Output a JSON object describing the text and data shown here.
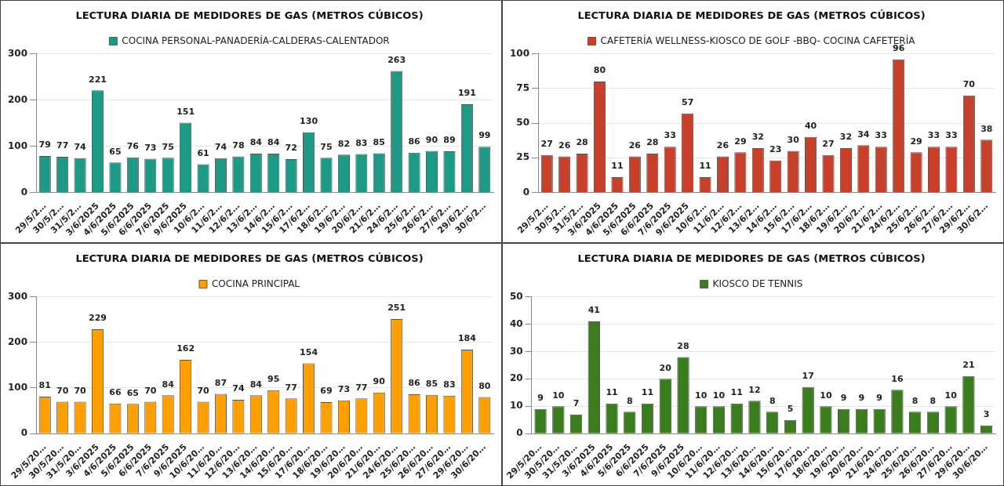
{
  "chart_data": [
    {
      "type": "bar",
      "title": "LECTURA DIARIA DE MEDIDORES DE GAS (METROS CÚBICOS)",
      "categories": [
        "29/5/2…",
        "30/5/2…",
        "31/5/2…",
        "3/6/2025",
        "4/6/2025",
        "5/6/2025",
        "6/6/2025",
        "7/6/2025",
        "9/6/2025",
        "10/6/2…",
        "11/6/2…",
        "12/6/2…",
        "13/6/2…",
        "14/6/2…",
        "15/6/2…",
        "17/6/2…",
        "18/6/2…",
        "19/6/2…",
        "20/6/2…",
        "21/6/2…",
        "24/6/2…",
        "25/6/2…",
        "26/6/2…",
        "27/6/2…",
        "29/6/2…",
        "30/6/2…"
      ],
      "series": [
        {
          "name": "COCINA PERSONAL-PANADERÍA-CALDERAS-CALENTADOR",
          "color": "#1c9a86",
          "values": [
            79,
            77,
            74,
            221,
            65,
            76,
            73,
            75,
            151,
            61,
            74,
            78,
            84,
            84,
            72,
            130,
            75,
            82,
            83,
            85,
            263,
            86,
            90,
            89,
            191,
            99
          ]
        }
      ],
      "ylim": [
        0,
        300
      ],
      "yticks": [
        0,
        100,
        200,
        300
      ],
      "grid": "y",
      "legend": "top",
      "data_labels": true
    },
    {
      "type": "bar",
      "title": "LECTURA DIARIA DE MEDIDORES DE GAS (METROS CÚBICOS)",
      "categories": [
        "29/5/2…",
        "30/5/2…",
        "31/5/2…",
        "3/6/2025",
        "4/6/2025",
        "5/6/2025",
        "6/6/2025",
        "7/6/2025",
        "9/6/2025",
        "10/6/2…",
        "11/6/2…",
        "12/6/2…",
        "13/6/2…",
        "14/6/2…",
        "15/6/2…",
        "17/6/2…",
        "18/6/2…",
        "19/6/2…",
        "20/6/2…",
        "21/6/2…",
        "24/6/2…",
        "25/6/2…",
        "26/6/2…",
        "27/6/2…",
        "29/6/2…",
        "30/6/2…"
      ],
      "series": [
        {
          "name": "CAFETERÍA WELLNESS-KIOSCO DE GOLF -BBQ- COCINA CAFETERÍA",
          "color": "#c9402a",
          "values": [
            27,
            26,
            28,
            80,
            11,
            26,
            28,
            33,
            57,
            11,
            26,
            29,
            32,
            23,
            30,
            40,
            27,
            32,
            34,
            33,
            96,
            29,
            33,
            33,
            70,
            38
          ]
        }
      ],
      "ylim": [
        0,
        100
      ],
      "yticks": [
        0,
        25,
        50,
        75,
        100
      ],
      "grid": "y",
      "legend": "top",
      "data_labels": true
    },
    {
      "type": "bar",
      "title": "LECTURA DIARIA DE MEDIDORES DE GAS (METROS CÚBICOS)",
      "categories": [
        "29/5/20…",
        "30/5/20…",
        "31/5/20…",
        "3/6/2025",
        "4/6/2025",
        "5/6/2025",
        "6/6/2025",
        "7/6/2025",
        "9/6/2025",
        "10/6/20…",
        "11/6/20…",
        "12/6/20…",
        "13/6/20…",
        "14/6/20…",
        "15/6/20…",
        "17/6/20…",
        "18/6/20…",
        "19/6/20…",
        "20/6/20…",
        "21/6/20…",
        "24/6/20…",
        "25/6/20…",
        "26/6/20…",
        "27/6/20…",
        "29/6/20…",
        "30/6/20…"
      ],
      "series": [
        {
          "name": "COCINA PRINCIPAL",
          "color": "#ffa000",
          "values": [
            81,
            70,
            70,
            229,
            66,
            65,
            70,
            84,
            162,
            70,
            87,
            74,
            84,
            95,
            77,
            154,
            69,
            73,
            77,
            90,
            251,
            86,
            85,
            83,
            184,
            80
          ]
        }
      ],
      "ylim": [
        0,
        300
      ],
      "yticks": [
        0,
        100,
        200,
        300
      ],
      "grid": "y",
      "legend": "top",
      "data_labels": true
    },
    {
      "type": "bar",
      "title": "LECTURA DIARIA DE MEDIDORES DE GAS (METROS CÚBICOS)",
      "categories": [
        "29/5/20…",
        "30/5/20…",
        "31/5/20…",
        "3/6/2025",
        "4/6/2025",
        "5/6/2025",
        "6/6/2025",
        "7/6/2025",
        "9/6/2025",
        "10/6/20…",
        "11/6/20…",
        "12/6/20…",
        "13/6/20…",
        "14/6/20…",
        "15/6/20…",
        "17/6/20…",
        "18/6/20…",
        "19/6/20…",
        "20/6/20…",
        "21/6/20…",
        "24/6/20…",
        "25/6/20…",
        "26/6/20…",
        "27/6/20…",
        "29/6/20…",
        "30/6/20…"
      ],
      "series": [
        {
          "name": "KIOSCO DE TENNIS",
          "color": "#3a7d1c",
          "values": [
            9,
            10,
            7,
            41,
            11,
            8,
            11,
            20,
            28,
            10,
            10,
            11,
            12,
            8,
            5,
            17,
            10,
            9,
            9,
            9,
            16,
            8,
            8,
            10,
            21,
            3
          ]
        }
      ],
      "ylim": [
        0,
        50
      ],
      "yticks": [
        0,
        10,
        20,
        30,
        40,
        50
      ],
      "grid": "y",
      "legend": "top",
      "data_labels": true
    }
  ]
}
